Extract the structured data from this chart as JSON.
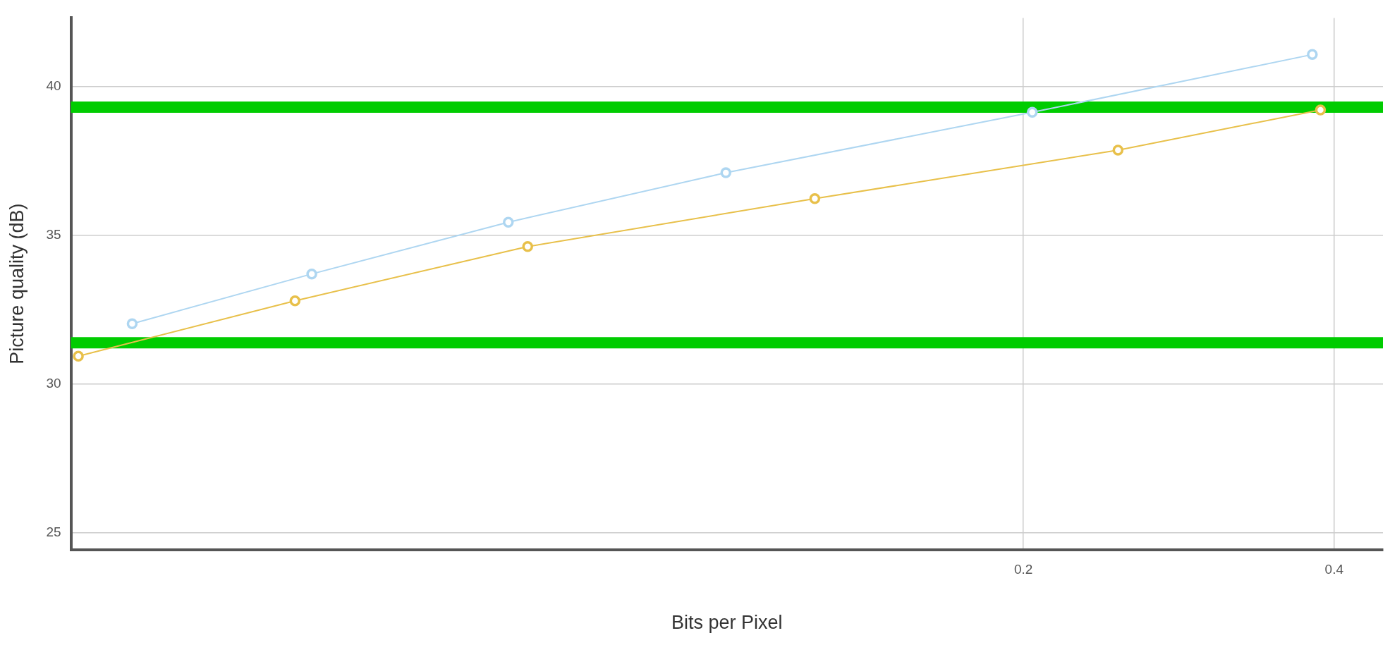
{
  "chart_data": {
    "type": "line",
    "xlabel": "Bits per Pixel",
    "ylabel": "Picture quality (dB)",
    "log": "x",
    "xlim": [
      0.0239,
      0.446
    ],
    "xticks": [
      0.2,
      0.4
    ],
    "ylim": [
      24.44,
      42.3
    ],
    "yticks": [
      25,
      30,
      35,
      40
    ],
    "grid": true,
    "legend": false,
    "marker": "circle",
    "line_style": "solid",
    "series": [
      {
        "color": "#aed6f1",
        "x": [
          0.0274,
          0.0409,
          0.0634,
          0.103,
          0.204,
          0.381
        ],
        "values": [
          32.03,
          33.7,
          35.44,
          37.1,
          39.13,
          41.07
        ]
      },
      {
        "color": "#e8c04a",
        "x": [
          0.0243,
          0.0394,
          0.0662,
          0.1256,
          0.247,
          0.388
        ],
        "values": [
          30.94,
          32.8,
          34.62,
          36.23,
          37.86,
          39.21
        ]
      }
    ],
    "ref_lines": [
      {
        "axis": "y",
        "value": 39.3,
        "color": "#00cc00"
      },
      {
        "axis": "y",
        "value": 31.39,
        "color": "#00cc00"
      }
    ]
  }
}
